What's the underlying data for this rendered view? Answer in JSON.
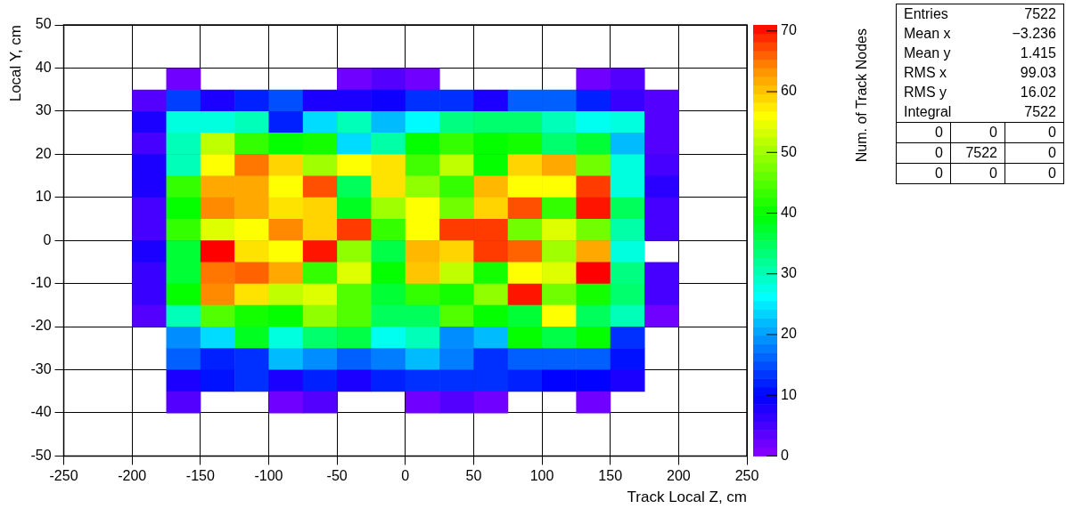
{
  "chart_data": {
    "type": "heatmap",
    "xlabel": "Track Local Z, cm",
    "ylabel": "Local Y, cm",
    "clabel": "Num. of Track Nodes",
    "x": [
      -187.5,
      -162.5,
      -137.5,
      -112.5,
      -87.5,
      -62.5,
      -37.5,
      -12.5,
      12.5,
      37.5,
      62.5,
      87.5,
      112.5,
      137.5,
      162.5,
      187.5
    ],
    "y": [
      37.5,
      32.5,
      27.5,
      22.5,
      17.5,
      12.5,
      7.5,
      2.5,
      -2.5,
      -7.5,
      -12.5,
      -17.5,
      -22.5,
      -27.5,
      -32.5,
      -37.5
    ],
    "xlim": [
      -250,
      250
    ],
    "xticks": [
      -250,
      -200,
      -150,
      -100,
      -50,
      0,
      50,
      100,
      150,
      200,
      250
    ],
    "ylim": [
      -50,
      50
    ],
    "yticks": [
      -50,
      -40,
      -30,
      -20,
      -10,
      0,
      10,
      20,
      30,
      40,
      50
    ],
    "clim": [
      0,
      71
    ],
    "cticks": [
      0,
      10,
      20,
      30,
      40,
      50,
      60,
      70
    ],
    "grid": true,
    "cells": [
      [
        null,
        2,
        null,
        null,
        null,
        null,
        2,
        4,
        2,
        null,
        null,
        null,
        null,
        2,
        4,
        null
      ],
      [
        4,
        14,
        8,
        12,
        15,
        8,
        8,
        9,
        13,
        13,
        8,
        16,
        16,
        12,
        6,
        4
      ],
      [
        8,
        28,
        28,
        30,
        12,
        24,
        30,
        22,
        26,
        33,
        34,
        34,
        30,
        27,
        28,
        4
      ],
      [
        5,
        30,
        52,
        43,
        40,
        41,
        24,
        31,
        40,
        43,
        40,
        41,
        34,
        37,
        22,
        4
      ],
      [
        8,
        30,
        56,
        65,
        59,
        50,
        56,
        58,
        44,
        52,
        40,
        59,
        62,
        47,
        28,
        5
      ],
      [
        8,
        43,
        62,
        62,
        56,
        67,
        35,
        58,
        49,
        43,
        61,
        56,
        56,
        68,
        28,
        7
      ],
      [
        5,
        40,
        64,
        62,
        58,
        59,
        38,
        50,
        56,
        47,
        59,
        67,
        43,
        70,
        35,
        5
      ],
      [
        5,
        43,
        54,
        56,
        64,
        59,
        68,
        43,
        56,
        68,
        68,
        47,
        54,
        47,
        31,
        5
      ],
      [
        8,
        37,
        71,
        58,
        56,
        70,
        49,
        36,
        61,
        59,
        68,
        66,
        50,
        62,
        28,
        null
      ],
      [
        6,
        37,
        65,
        66,
        62,
        43,
        54,
        40,
        60,
        52,
        41,
        56,
        54,
        71,
        33,
        5
      ],
      [
        6,
        40,
        64,
        58,
        52,
        54,
        45,
        37,
        43,
        41,
        49,
        70,
        47,
        41,
        34,
        5
      ],
      [
        4,
        30,
        45,
        41,
        40,
        49,
        45,
        35,
        35,
        45,
        40,
        37,
        56,
        35,
        30,
        2
      ],
      [
        null,
        19,
        24,
        38,
        28,
        34,
        36,
        27,
        30,
        19,
        22,
        40,
        36,
        40,
        13,
        null
      ],
      [
        null,
        16,
        12,
        13,
        22,
        19,
        16,
        18,
        22,
        18,
        13,
        16,
        16,
        16,
        11,
        null
      ],
      [
        null,
        8,
        11,
        13,
        8,
        12,
        8,
        12,
        13,
        13,
        13,
        12,
        10,
        10,
        8,
        null
      ],
      [
        null,
        4,
        null,
        null,
        2,
        4,
        null,
        null,
        2,
        4,
        2,
        null,
        null,
        2,
        null,
        null
      ]
    ],
    "annotations": [
      "Entries 7522",
      "Mean x −3.236",
      "Mean y 1.415",
      "RMS x 99.03",
      "RMS y 16.02",
      "Integral 7522",
      "0 0 0",
      "0 7522 0",
      "0 0 0"
    ]
  }
}
